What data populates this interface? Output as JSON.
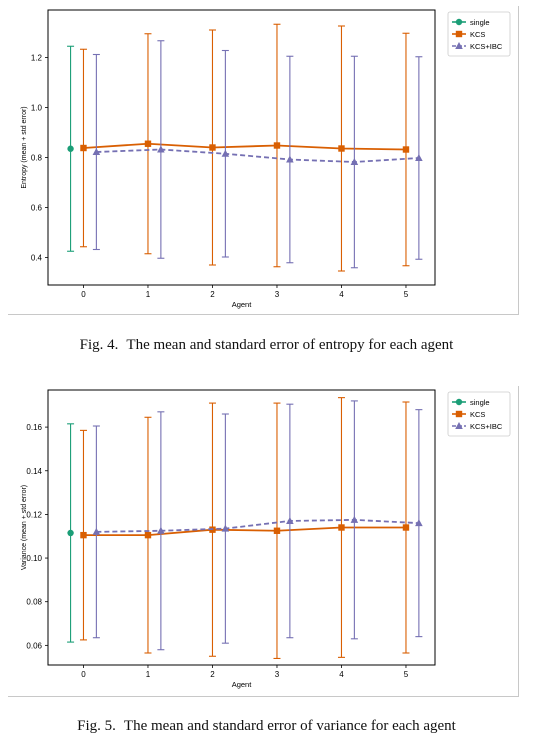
{
  "colors": {
    "single": "#1b9e77",
    "kcs": "#d95f02",
    "kcs_ibc": "#7570b3"
  },
  "captions": {
    "fig4_label": "Fig. 4.",
    "fig4_text": "The mean and standard error of entropy for each agent",
    "fig5_label": "Fig. 5.",
    "fig5_text": "The mean and standard error of variance for each agent"
  },
  "chart_data": [
    {
      "type": "line",
      "xlabel": "Agent",
      "ylabel": "Entropy (mean + std error)",
      "x_ticks": [
        0,
        1,
        2,
        3,
        4,
        5
      ],
      "xlim": [
        -0.55,
        5.45
      ],
      "ylim": [
        0.29,
        1.39
      ],
      "y_ticks": [
        0.4,
        0.6,
        0.8,
        1.0,
        1.2
      ],
      "y_tick_labels": [
        "0.4",
        "0.6",
        "0.8",
        "1.0",
        "1.2"
      ],
      "legend_position": "top-right",
      "grid": false,
      "series": [
        {
          "name": "single",
          "marker": "circle",
          "style": "solid",
          "points": [
            {
              "x": -0.2,
              "y": 0.835,
              "err": 0.41
            }
          ]
        },
        {
          "name": "KCS",
          "marker": "square",
          "style": "solid",
          "points": [
            {
              "x": 0,
              "y": 0.838,
              "err": 0.395
            },
            {
              "x": 1,
              "y": 0.855,
              "err": 0.44
            },
            {
              "x": 2,
              "y": 0.84,
              "err": 0.47
            },
            {
              "x": 3,
              "y": 0.848,
              "err": 0.485
            },
            {
              "x": 4,
              "y": 0.836,
              "err": 0.49
            },
            {
              "x": 5,
              "y": 0.832,
              "err": 0.465
            }
          ]
        },
        {
          "name": "KCS+IBC",
          "marker": "triangle",
          "style": "dashed",
          "points": [
            {
              "x": 0.2,
              "y": 0.822,
              "err": 0.39
            },
            {
              "x": 1.2,
              "y": 0.832,
              "err": 0.435
            },
            {
              "x": 2.2,
              "y": 0.815,
              "err": 0.413
            },
            {
              "x": 3.2,
              "y": 0.792,
              "err": 0.413
            },
            {
              "x": 4.2,
              "y": 0.782,
              "err": 0.423
            },
            {
              "x": 5.2,
              "y": 0.798,
              "err": 0.405
            }
          ]
        }
      ]
    },
    {
      "type": "line",
      "xlabel": "Agent",
      "ylabel": "Variance (mean + std error)",
      "x_ticks": [
        0,
        1,
        2,
        3,
        4,
        5
      ],
      "xlim": [
        -0.55,
        5.45
      ],
      "ylim": [
        0.051,
        0.177
      ],
      "y_ticks": [
        0.06,
        0.08,
        0.1,
        0.12,
        0.14,
        0.16
      ],
      "y_tick_labels": [
        "0.06",
        "0.08",
        "0.10",
        "0.12",
        "0.14",
        "0.16"
      ],
      "legend_position": "top-right",
      "grid": false,
      "series": [
        {
          "name": "single",
          "marker": "circle",
          "style": "solid",
          "points": [
            {
              "x": -0.2,
              "y": 0.1115,
              "err": 0.05
            }
          ]
        },
        {
          "name": "KCS",
          "marker": "square",
          "style": "solid",
          "points": [
            {
              "x": 0,
              "y": 0.1105,
              "err": 0.048
            },
            {
              "x": 1,
              "y": 0.1105,
              "err": 0.054
            },
            {
              "x": 2,
              "y": 0.113,
              "err": 0.058
            },
            {
              "x": 3,
              "y": 0.1125,
              "err": 0.0585
            },
            {
              "x": 4,
              "y": 0.114,
              "err": 0.0595
            },
            {
              "x": 5,
              "y": 0.114,
              "err": 0.0575
            }
          ]
        },
        {
          "name": "KCS+IBC",
          "marker": "triangle",
          "style": "dashed",
          "points": [
            {
              "x": 0.2,
              "y": 0.112,
              "err": 0.0485
            },
            {
              "x": 1.2,
              "y": 0.1125,
              "err": 0.0545
            },
            {
              "x": 2.2,
              "y": 0.1135,
              "err": 0.0525
            },
            {
              "x": 3.2,
              "y": 0.117,
              "err": 0.0535
            },
            {
              "x": 4.2,
              "y": 0.1175,
              "err": 0.0545
            },
            {
              "x": 5.2,
              "y": 0.116,
              "err": 0.052
            }
          ]
        }
      ]
    }
  ]
}
